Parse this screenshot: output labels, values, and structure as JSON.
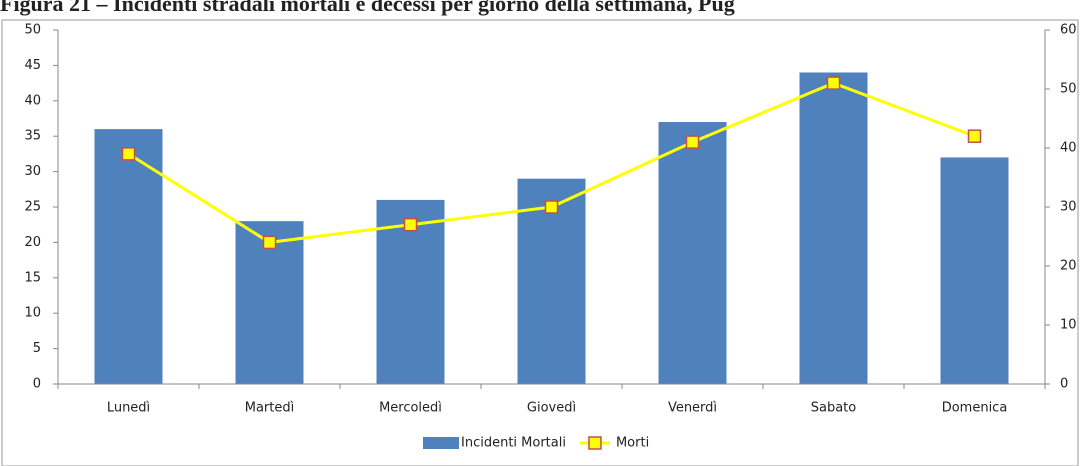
{
  "chart_data": {
    "type": "bar_line",
    "title": "Figura 21 – Incidenti stradali mortali e decessi per giorno della settimana, Pug",
    "categories": [
      "Lunedì",
      "Martedì",
      "Mercoledì",
      "Giovedì",
      "Venerdì",
      "Sabato",
      "Domenica"
    ],
    "series": [
      {
        "name": "Incidenti Mortali",
        "type": "bar",
        "color": "#4f81bd",
        "values": [
          36,
          23,
          26,
          29,
          37,
          44,
          32
        ]
      },
      {
        "name": "Morti",
        "type": "line",
        "axis": "y2",
        "color": "#ffff00",
        "marker_edge": "#c0504d",
        "values": [
          39,
          24,
          27,
          30,
          41,
          51,
          42
        ]
      }
    ],
    "ylim": [
      0,
      50
    ],
    "yticks": [
      0,
      5,
      10,
      15,
      20,
      25,
      30,
      35,
      40,
      45,
      50
    ],
    "y2lim": [
      0,
      60
    ],
    "y2ticks": [
      0,
      10,
      20,
      30,
      40,
      50,
      60
    ],
    "legend": "bottom"
  }
}
